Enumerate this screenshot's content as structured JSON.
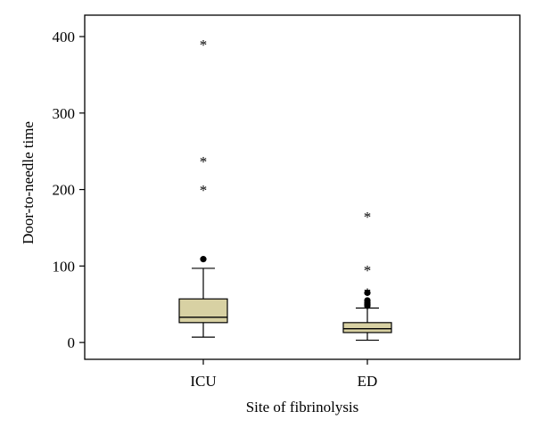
{
  "chart_data": {
    "type": "boxplot",
    "xlabel": "Site of fibrinolysis",
    "ylabel": "Door-to-needle time",
    "ylim": [
      -22,
      428
    ],
    "yticks": [
      0,
      100,
      200,
      300,
      400
    ],
    "grid": false,
    "colors": {
      "box_fill": "#d8d1a3",
      "stroke": "#000000"
    },
    "categories": [
      "ICU",
      "ED"
    ],
    "boxes": [
      {
        "category": "ICU",
        "whisker_low": 7,
        "q1": 26,
        "median": 33,
        "q3": 57,
        "whisker_high": 97,
        "outliers": [
          109
        ],
        "extreme_outliers": [
          202,
          239,
          392
        ]
      },
      {
        "category": "ED",
        "whisker_low": 3,
        "q1": 13,
        "median": 18,
        "q3": 26,
        "whisker_high": 45,
        "outliers": [
          48,
          50,
          52,
          55,
          65
        ],
        "extreme_outliers": [
          67,
          97,
          167
        ]
      }
    ]
  }
}
